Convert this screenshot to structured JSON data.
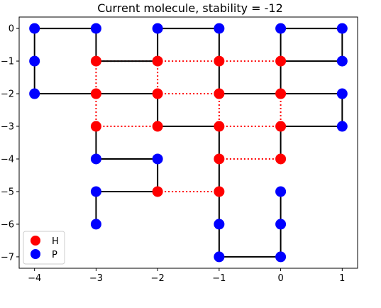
{
  "chart_data": {
    "type": "scatter",
    "title": "Current molecule, stability = -12",
    "xlabel": "",
    "ylabel": "",
    "xlim": [
      -4.25,
      1.25
    ],
    "ylim": [
      -7.35,
      0.35
    ],
    "xticks": [
      -4,
      -3,
      -2,
      -1,
      0,
      1
    ],
    "xtick_labels": [
      "−4",
      "−3",
      "−2",
      "−1",
      "0",
      "1"
    ],
    "yticks": [
      0,
      -1,
      -2,
      -3,
      -4,
      -5,
      -6,
      -7
    ],
    "ytick_labels": [
      "0",
      "−1",
      "−2",
      "−3",
      "−4",
      "−5",
      "−6",
      "−7"
    ],
    "grid": false,
    "legend": {
      "placement": "lower-left",
      "entries": [
        {
          "label": "H",
          "color": "#ff0000"
        },
        {
          "label": "P",
          "color": "#0000ff"
        }
      ]
    },
    "colors": {
      "H": "#ff0000",
      "P": "#0000ff",
      "chain": "#000000",
      "contact": "#ff0000"
    },
    "chain": [
      {
        "x": -3,
        "y": -6,
        "type": "P"
      },
      {
        "x": -3,
        "y": -5,
        "type": "P"
      },
      {
        "x": -2,
        "y": -5,
        "type": "H"
      },
      {
        "x": -2,
        "y": -4,
        "type": "P"
      },
      {
        "x": -3,
        "y": -4,
        "type": "P"
      },
      {
        "x": -3,
        "y": -3,
        "type": "H"
      },
      {
        "x": -2,
        "y": -3,
        "type": "H"
      },
      {
        "x": -2,
        "y": -2,
        "type": "H"
      },
      {
        "x": -3,
        "y": -2,
        "type": "H"
      },
      {
        "x": -4,
        "y": -2,
        "type": "P"
      },
      {
        "x": -4,
        "y": -1,
        "type": "P"
      },
      {
        "x": -4,
        "y": 0,
        "type": "P"
      },
      {
        "x": -3,
        "y": 0,
        "type": "P"
      },
      {
        "x": -3,
        "y": -1,
        "type": "H"
      },
      {
        "x": -2,
        "y": -1,
        "type": "H"
      },
      {
        "x": -2,
        "y": 0,
        "type": "P"
      },
      {
        "x": -1,
        "y": 0,
        "type": "P"
      },
      {
        "x": -1,
        "y": -1,
        "type": "H"
      },
      {
        "x": -1,
        "y": -2,
        "type": "H"
      },
      {
        "x": 0,
        "y": -2,
        "type": "H"
      },
      {
        "x": 0,
        "y": -1,
        "type": "H"
      },
      {
        "x": 0,
        "y": 0,
        "type": "P"
      },
      {
        "x": 1,
        "y": 0,
        "type": "P"
      },
      {
        "x": 1,
        "y": -1,
        "type": "P"
      },
      {
        "x": 0,
        "y": -1,
        "type": "H",
        "skip": true
      }
    ],
    "chain_tail": [
      {
        "x": 1,
        "y": -1,
        "type": "P"
      },
      {
        "x": 1,
        "y": -2,
        "type": "P"
      },
      {
        "x": 1,
        "y": -3,
        "type": "P"
      },
      {
        "x": 0,
        "y": -3,
        "type": "H"
      },
      {
        "x": -1,
        "y": -3,
        "type": "H"
      },
      {
        "x": -1,
        "y": -4,
        "type": "H"
      },
      {
        "x": -1,
        "y": -5,
        "type": "H"
      },
      {
        "x": -1,
        "y": -6,
        "type": "P"
      },
      {
        "x": -1,
        "y": -7,
        "type": "P"
      },
      {
        "x": 0,
        "y": -7,
        "type": "P"
      },
      {
        "x": 0,
        "y": -6,
        "type": "P"
      },
      {
        "x": 0,
        "y": -5,
        "type": "P"
      },
      {
        "x": 0,
        "y": -4,
        "type": "H"
      }
    ],
    "segments": [
      [
        [
          -3,
          -6
        ],
        [
          -3,
          -5
        ]
      ],
      [
        [
          -3,
          -5
        ],
        [
          -2,
          -5
        ]
      ],
      [
        [
          -2,
          -5
        ],
        [
          -2,
          -4
        ]
      ],
      [
        [
          -2,
          -4
        ],
        [
          -3,
          -4
        ]
      ],
      [
        [
          -3,
          -4
        ],
        [
          -3,
          -3
        ]
      ],
      [
        [
          -2,
          -3
        ],
        [
          -2,
          -2
        ]
      ],
      [
        [
          -2,
          -3
        ],
        [
          -1,
          -3
        ]
      ],
      [
        [
          -2,
          -2
        ],
        [
          -3,
          -2
        ]
      ],
      [
        [
          -3,
          -2
        ],
        [
          -4,
          -2
        ]
      ],
      [
        [
          -4,
          -2
        ],
        [
          -4,
          -1
        ]
      ],
      [
        [
          -4,
          -1
        ],
        [
          -4,
          0
        ]
      ],
      [
        [
          -4,
          0
        ],
        [
          -3,
          0
        ]
      ],
      [
        [
          -3,
          0
        ],
        [
          -3,
          -1
        ]
      ],
      [
        [
          -3,
          -1
        ],
        [
          -2,
          -1
        ]
      ],
      [
        [
          -2,
          -1
        ],
        [
          -2,
          0
        ]
      ],
      [
        [
          -2,
          0
        ],
        [
          -1,
          0
        ]
      ],
      [
        [
          -1,
          0
        ],
        [
          -1,
          -1
        ]
      ],
      [
        [
          -1,
          -1
        ],
        [
          -1,
          -2
        ]
      ],
      [
        [
          -1,
          -2
        ],
        [
          0,
          -2
        ]
      ],
      [
        [
          0,
          -2
        ],
        [
          0,
          -1
        ]
      ],
      [
        [
          0,
          -1
        ],
        [
          0,
          0
        ]
      ],
      [
        [
          0,
          0
        ],
        [
          1,
          0
        ]
      ],
      [
        [
          1,
          0
        ],
        [
          1,
          -1
        ]
      ],
      [
        [
          1,
          -1
        ],
        [
          0,
          -1
        ]
      ],
      [
        [
          0,
          -2
        ],
        [
          1,
          -2
        ]
      ],
      [
        [
          1,
          -2
        ],
        [
          1,
          -3
        ]
      ],
      [
        [
          1,
          -3
        ],
        [
          0,
          -3
        ]
      ],
      [
        [
          0,
          -3
        ],
        [
          0,
          -4
        ]
      ],
      [
        [
          -1,
          -3
        ],
        [
          -1,
          -4
        ]
      ],
      [
        [
          -1,
          -4
        ],
        [
          -1,
          -5
        ]
      ],
      [
        [
          -1,
          -5
        ],
        [
          -1,
          -6
        ]
      ],
      [
        [
          -1,
          -6
        ],
        [
          -1,
          -7
        ]
      ],
      [
        [
          -1,
          -7
        ],
        [
          0,
          -7
        ]
      ],
      [
        [
          0,
          -7
        ],
        [
          0,
          -6
        ]
      ],
      [
        [
          0,
          -6
        ],
        [
          0,
          -5
        ]
      ]
    ],
    "contacts": [
      [
        [
          -3,
          -1
        ],
        [
          -3,
          -2
        ]
      ],
      [
        [
          -3,
          -2
        ],
        [
          -3,
          -3
        ]
      ],
      [
        [
          -3,
          -3
        ],
        [
          -2,
          -3
        ]
      ],
      [
        [
          -3,
          -1
        ],
        [
          -2,
          -1
        ]
      ],
      [
        [
          -2,
          -1
        ],
        [
          -1,
          -1
        ]
      ],
      [
        [
          -1,
          -1
        ],
        [
          0,
          -1
        ]
      ],
      [
        [
          -2,
          -1
        ],
        [
          -2,
          -2
        ]
      ],
      [
        [
          -3,
          -2
        ],
        [
          -2,
          -2
        ]
      ],
      [
        [
          -2,
          -2
        ],
        [
          -1,
          -2
        ]
      ],
      [
        [
          -1,
          -2
        ],
        [
          -1,
          -3
        ]
      ],
      [
        [
          0,
          -2
        ],
        [
          0,
          -3
        ]
      ],
      [
        [
          -1,
          -3
        ],
        [
          0,
          -3
        ]
      ],
      [
        [
          -1,
          -4
        ],
        [
          0,
          -4
        ]
      ],
      [
        [
          -2,
          -5
        ],
        [
          -1,
          -5
        ]
      ]
    ],
    "points": [
      {
        "x": -4,
        "y": 0,
        "type": "P"
      },
      {
        "x": -3,
        "y": 0,
        "type": "P"
      },
      {
        "x": -2,
        "y": 0,
        "type": "P"
      },
      {
        "x": -1,
        "y": 0,
        "type": "P"
      },
      {
        "x": 0,
        "y": 0,
        "type": "P"
      },
      {
        "x": 1,
        "y": 0,
        "type": "P"
      },
      {
        "x": -4,
        "y": -1,
        "type": "P"
      },
      {
        "x": -3,
        "y": -1,
        "type": "H"
      },
      {
        "x": -2,
        "y": -1,
        "type": "H"
      },
      {
        "x": -1,
        "y": -1,
        "type": "H"
      },
      {
        "x": 0,
        "y": -1,
        "type": "H"
      },
      {
        "x": 1,
        "y": -1,
        "type": "P"
      },
      {
        "x": -4,
        "y": -2,
        "type": "P"
      },
      {
        "x": -3,
        "y": -2,
        "type": "H"
      },
      {
        "x": -2,
        "y": -2,
        "type": "H"
      },
      {
        "x": -1,
        "y": -2,
        "type": "H"
      },
      {
        "x": 0,
        "y": -2,
        "type": "H"
      },
      {
        "x": 1,
        "y": -2,
        "type": "P"
      },
      {
        "x": -3,
        "y": -3,
        "type": "H"
      },
      {
        "x": -2,
        "y": -3,
        "type": "H"
      },
      {
        "x": -1,
        "y": -3,
        "type": "H"
      },
      {
        "x": 0,
        "y": -3,
        "type": "H"
      },
      {
        "x": 1,
        "y": -3,
        "type": "P"
      },
      {
        "x": -3,
        "y": -4,
        "type": "P"
      },
      {
        "x": -2,
        "y": -4,
        "type": "P"
      },
      {
        "x": -1,
        "y": -4,
        "type": "H"
      },
      {
        "x": 0,
        "y": -4,
        "type": "H"
      },
      {
        "x": -3,
        "y": -5,
        "type": "P"
      },
      {
        "x": -2,
        "y": -5,
        "type": "H"
      },
      {
        "x": -1,
        "y": -5,
        "type": "H"
      },
      {
        "x": 0,
        "y": -5,
        "type": "P"
      },
      {
        "x": -3,
        "y": -6,
        "type": "P"
      },
      {
        "x": -1,
        "y": -6,
        "type": "P"
      },
      {
        "x": 0,
        "y": -6,
        "type": "P"
      },
      {
        "x": -1,
        "y": -7,
        "type": "P"
      },
      {
        "x": 0,
        "y": -7,
        "type": "P"
      }
    ]
  }
}
